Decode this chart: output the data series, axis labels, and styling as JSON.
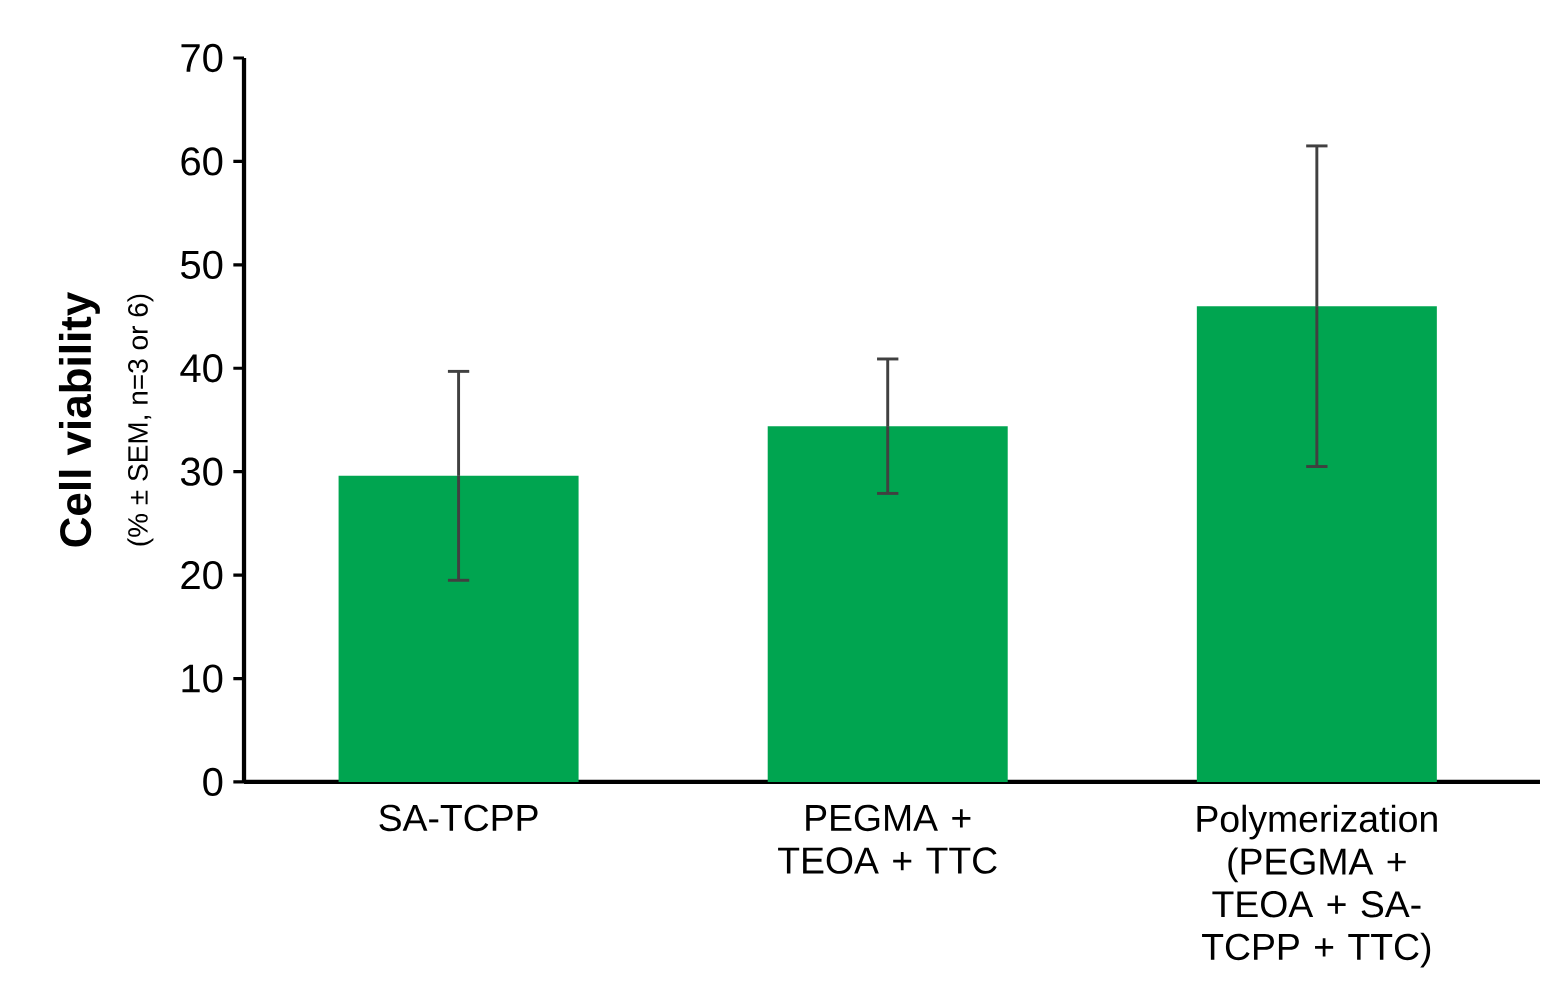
{
  "chart_data": {
    "type": "bar",
    "ylabel": "Cell viability",
    "annotations": [
      "(% ± SEM, n=3 or 6)"
    ],
    "categories": [
      "SA-TCPP",
      "PEGMA + TEOA + TTC",
      "Polymerization (PEGMA + TEOA + SA-TCPP + TTC)"
    ],
    "values": [
      29.6,
      34.4,
      46.0
    ],
    "errors": [
      10.1,
      6.5,
      15.5
    ],
    "color": "#00a550",
    "ylim": [
      0,
      70
    ],
    "yticks": [
      0,
      10,
      20,
      30,
      40,
      50,
      60,
      70
    ],
    "grid": false
  }
}
